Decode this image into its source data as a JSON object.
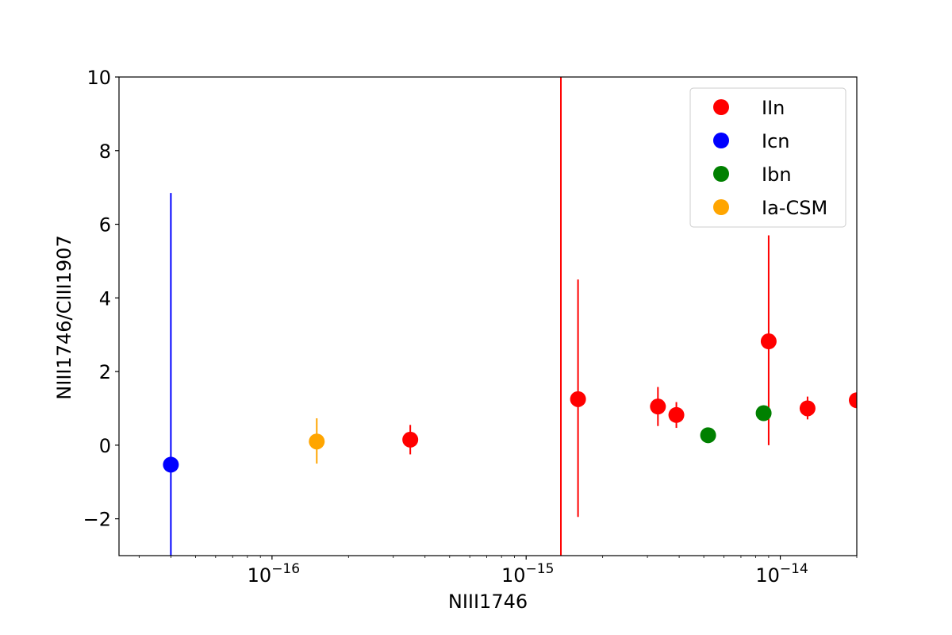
{
  "chart_data": {
    "type": "scatter",
    "xlabel": "NIII1746",
    "ylabel": "NIII1746/CIII1907",
    "xscale": "log",
    "xlim": [
      2.5e-17,
      2e-14
    ],
    "ylim": [
      -3,
      10
    ],
    "y_ticks": [
      -2,
      0,
      2,
      4,
      6,
      8,
      10
    ],
    "y_tick_labels": [
      "−2",
      "0",
      "2",
      "4",
      "6",
      "8",
      "10"
    ],
    "x_ticks": [
      1e-16,
      1e-15,
      1e-14
    ],
    "x_tick_labels": [
      {
        "base": "10",
        "exp": "−16"
      },
      {
        "base": "10",
        "exp": "−15"
      },
      {
        "base": "10",
        "exp": "−14"
      }
    ],
    "grid": false,
    "legend_position": "top-right",
    "series": [
      {
        "name": "IIn",
        "color": "#ff0000",
        "points": [
          {
            "x": 3.5e-16,
            "y": 0.15,
            "ylo": -0.25,
            "yhi": 0.55
          },
          {
            "x": 1.6e-15,
            "y": 1.25,
            "ylo": -1.95,
            "yhi": 4.5
          },
          {
            "x": 3.3e-15,
            "y": 1.05,
            "ylo": 0.52,
            "yhi": 1.58
          },
          {
            "x": 3.9e-15,
            "y": 0.82,
            "ylo": 0.47,
            "yhi": 1.17
          },
          {
            "x": 9e-15,
            "y": 2.82,
            "ylo": 0.0,
            "yhi": 5.7
          },
          {
            "x": 1.28e-14,
            "y": 1.0,
            "ylo": 0.7,
            "yhi": 1.32
          },
          {
            "x": 2e-14,
            "y": 1.22,
            "ylo": 1.22,
            "yhi": 1.22
          }
        ]
      },
      {
        "name": "Icn",
        "color": "#0000ff",
        "points": [
          {
            "x": 4e-17,
            "y": -0.53,
            "ylo": -3.0,
            "yhi": 6.85
          }
        ]
      },
      {
        "name": "Ibn",
        "color": "#008000",
        "points": [
          {
            "x": 5.2e-15,
            "y": 0.27,
            "ylo": 0.27,
            "yhi": 0.27
          },
          {
            "x": 8.6e-15,
            "y": 0.87,
            "ylo": 0.87,
            "yhi": 0.87
          }
        ]
      },
      {
        "name": "Ia-CSM",
        "color": "#ffa500",
        "points": [
          {
            "x": 1.5e-16,
            "y": 0.1,
            "ylo": -0.5,
            "yhi": 0.73
          }
        ]
      }
    ],
    "extra_lines": [
      {
        "color": "#ff0000",
        "x": 1.37e-15,
        "ylo": -3.0,
        "yhi": 10.0
      }
    ]
  }
}
